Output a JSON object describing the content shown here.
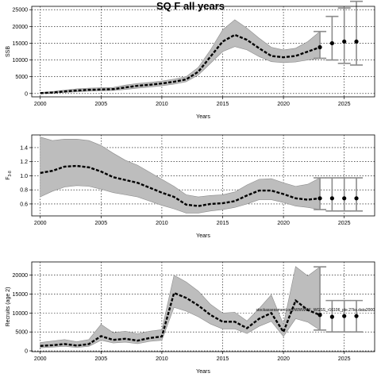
{
  "title": "SQ F all years",
  "chart_data": [
    {
      "type": "line",
      "ylabel": "SSB",
      "xlabel": "Years",
      "xlim": [
        1999.3,
        2027.5
      ],
      "ylim": [
        -1000,
        26000
      ],
      "xticks": [
        2000,
        2005,
        2010,
        2015,
        2020,
        2025
      ],
      "yticks": [
        0,
        5000,
        10000,
        15000,
        20000,
        25000
      ],
      "grid": true,
      "x": [
        2000,
        2001,
        2002,
        2003,
        2004,
        2005,
        2006,
        2007,
        2008,
        2009,
        2010,
        2011,
        2012,
        2013,
        2014,
        2015,
        2016,
        2017,
        2018,
        2019,
        2020,
        2021,
        2022,
        2023
      ],
      "series": [
        {
          "values": [
            100,
            300,
            600,
            900,
            1100,
            1200,
            1300,
            1800,
            2300,
            2600,
            3000,
            3500,
            4200,
            6500,
            11000,
            15500,
            17500,
            16000,
            13500,
            11200,
            10800,
            11200,
            12500,
            13800
          ],
          "lower": [
            0,
            100,
            300,
            500,
            700,
            800,
            900,
            1200,
            1600,
            1900,
            2300,
            2800,
            3500,
            5500,
            9000,
            12500,
            14000,
            13000,
            11000,
            9500,
            9200,
            9400,
            10000,
            10500
          ],
          "upper": [
            300,
            600,
            1000,
            1400,
            1600,
            1700,
            1800,
            2500,
            3000,
            3300,
            3700,
            4300,
            5000,
            7800,
            13000,
            19000,
            22000,
            19500,
            16500,
            13800,
            13000,
            13500,
            15500,
            18500
          ]
        }
      ],
      "projection": {
        "x": [
          2024,
          2025,
          2026
        ],
        "values": [
          15000,
          15500,
          15500
        ],
        "lower": [
          10000,
          9000,
          8500
        ],
        "upper": [
          23000,
          25500,
          27500
        ]
      }
    },
    {
      "type": "line",
      "ylabel": "F",
      "ylabel_sub": "3-8",
      "xlabel": "Years",
      "xlim": [
        1999.3,
        2027.5
      ],
      "ylim": [
        0.43,
        1.58
      ],
      "xticks": [
        2000,
        2005,
        2010,
        2015,
        2020,
        2025
      ],
      "yticks": [
        0.6,
        0.8,
        1.0,
        1.2,
        1.4
      ],
      "ytick_labels": [
        "0.6",
        "0.8",
        "1.0",
        "1.2",
        "1.4"
      ],
      "grid": true,
      "x": [
        2000,
        2001,
        2002,
        2003,
        2004,
        2005,
        2006,
        2007,
        2008,
        2009,
        2010,
        2011,
        2012,
        2013,
        2014,
        2015,
        2016,
        2017,
        2018,
        2019,
        2020,
        2021,
        2022,
        2023
      ],
      "series": [
        {
          "values": [
            1.04,
            1.07,
            1.13,
            1.14,
            1.12,
            1.06,
            0.98,
            0.94,
            0.9,
            0.83,
            0.76,
            0.7,
            0.59,
            0.57,
            0.6,
            0.61,
            0.64,
            0.72,
            0.79,
            0.79,
            0.74,
            0.68,
            0.66,
            0.68
          ],
          "lower": [
            0.7,
            0.78,
            0.84,
            0.86,
            0.85,
            0.81,
            0.76,
            0.73,
            0.7,
            0.64,
            0.58,
            0.53,
            0.47,
            0.47,
            0.5,
            0.52,
            0.55,
            0.6,
            0.66,
            0.66,
            0.62,
            0.57,
            0.55,
            0.52
          ],
          "upper": [
            1.55,
            1.5,
            1.52,
            1.52,
            1.5,
            1.43,
            1.32,
            1.22,
            1.15,
            1.05,
            0.95,
            0.85,
            0.73,
            0.7,
            0.72,
            0.73,
            0.77,
            0.87,
            0.95,
            0.96,
            0.9,
            0.85,
            0.88,
            0.97
          ]
        }
      ],
      "projection": {
        "x": [
          2024,
          2025,
          2026
        ],
        "values": [
          0.68,
          0.68,
          0.68
        ],
        "lower": [
          0.5,
          0.5,
          0.5
        ],
        "upper": [
          0.97,
          0.97,
          0.97
        ]
      }
    },
    {
      "type": "line",
      "ylabel": "Recruits (age 2)",
      "xlabel": "Years",
      "xlim": [
        1999.3,
        2027.5
      ],
      "ylim": [
        -200,
        23500
      ],
      "xticks": [
        2000,
        2005,
        2010,
        2015,
        2020,
        2025
      ],
      "yticks": [
        0,
        5000,
        10000,
        15000,
        20000
      ],
      "grid": true,
      "x": [
        2000,
        2001,
        2002,
        2003,
        2004,
        2005,
        2006,
        2007,
        2008,
        2009,
        2010,
        2011,
        2012,
        2013,
        2014,
        2015,
        2016,
        2017,
        2018,
        2019,
        2020,
        2021,
        2022,
        2023
      ],
      "series": [
        {
          "values": [
            1300,
            1500,
            1800,
            1400,
            1800,
            3900,
            2900,
            3200,
            2700,
            3400,
            3800,
            15300,
            14000,
            12000,
            9500,
            7700,
            7700,
            6000,
            8500,
            10000,
            5000,
            13300,
            10800,
            9500
          ],
          "lower": [
            800,
            1000,
            1200,
            900,
            1200,
            2800,
            2100,
            2300,
            1900,
            2500,
            2800,
            11500,
            10500,
            9000,
            7100,
            5800,
            5800,
            4600,
            6500,
            7800,
            3800,
            8500,
            7600,
            5500
          ],
          "upper": [
            2200,
            2600,
            3000,
            2400,
            3000,
            7000,
            4800,
            5200,
            4500,
            5200,
            5600,
            20000,
            18200,
            15800,
            12300,
            10000,
            10200,
            7900,
            11200,
            14800,
            7000,
            22300,
            19800,
            22200
          ]
        }
      ],
      "projection": {
        "x": [
          2024,
          2025,
          2026
        ],
        "values": [
          9000,
          9200,
          9200
        ],
        "lower": [
          5000,
          5000,
          5000
        ],
        "upper": [
          13300,
          13300,
          13300
        ]
      },
      "annotation": "stockassessment.org/WWWGF_WGSS_r16106_ple.27ks.data2000"
    }
  ]
}
